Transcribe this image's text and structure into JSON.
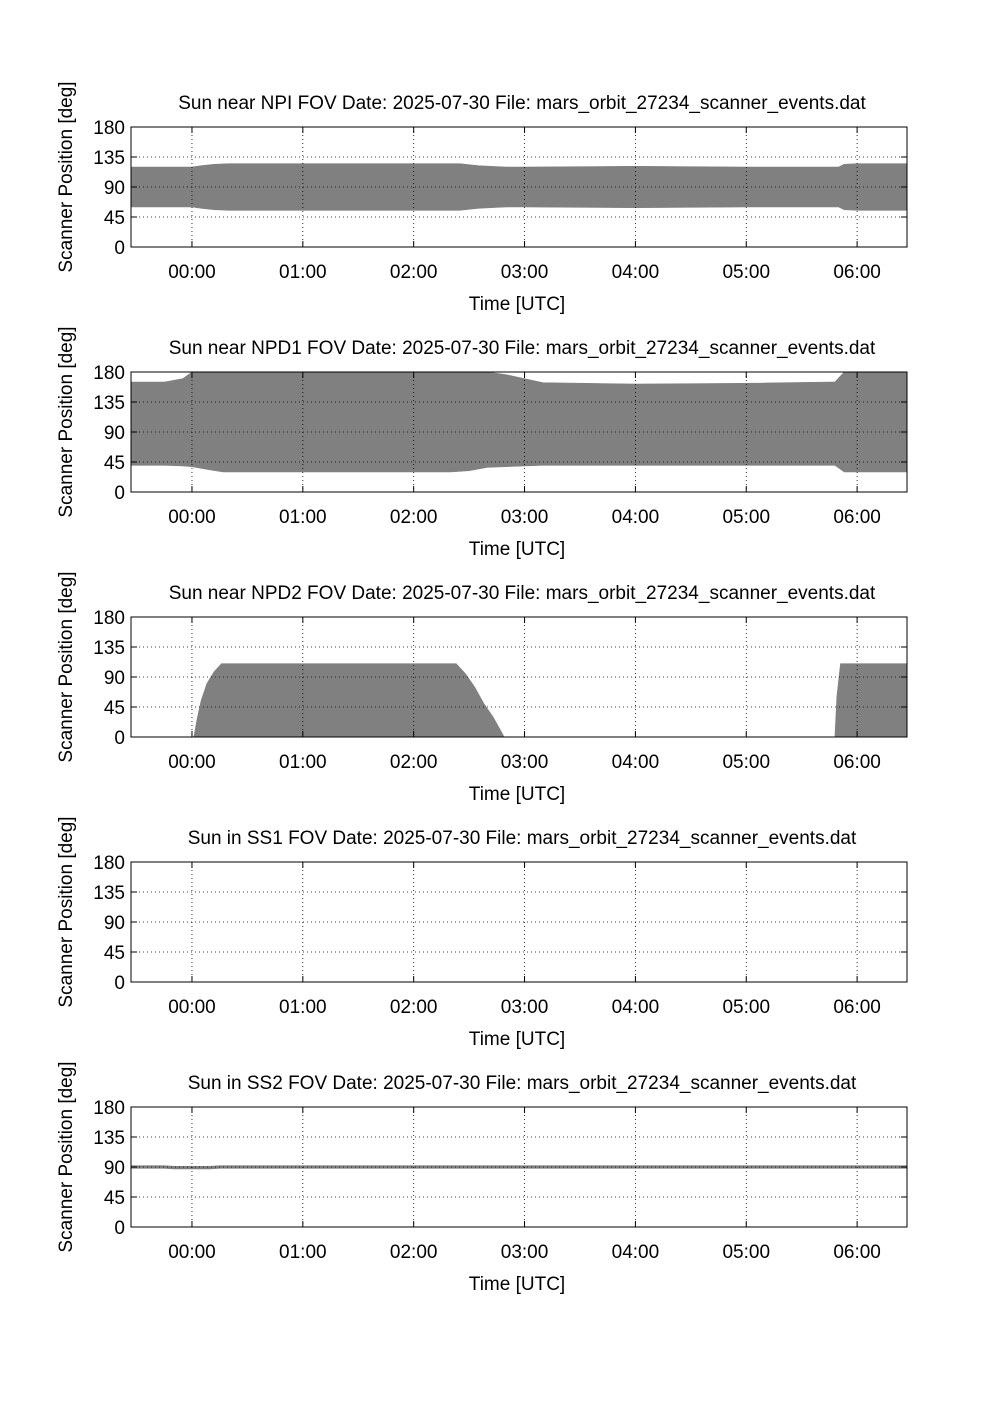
{
  "chart_data": [
    {
      "type": "area",
      "title": "Sun near NPI FOV   Date: 2025-07-30   File: mars_orbit_27234_scanner_events.dat",
      "xlabel": "Time [UTC]",
      "ylabel": "Scanner Position [deg]",
      "xlim": [
        "2025-07-29T23:27",
        "2025-07-30T06:27"
      ],
      "ylim": [
        0,
        180
      ],
      "xticks": [
        "00:00",
        "01:00",
        "02:00",
        "03:00",
        "04:00",
        "05:00",
        "06:00"
      ],
      "yticks": [
        "0",
        "45",
        "90",
        "135",
        "180"
      ],
      "grid": true,
      "fill_color": "#808080",
      "series": [
        {
          "x": [
            "2025-07-29T23:27",
            "2025-07-30T00:00",
            "2025-07-30T00:05",
            "2025-07-30T00:12",
            "2025-07-30T00:20",
            "2025-07-30T01:00",
            "2025-07-30T02:00",
            "2025-07-30T02:25",
            "2025-07-30T02:35",
            "2025-07-30T02:50",
            "2025-07-30T03:00",
            "2025-07-30T04:00",
            "2025-07-30T05:00",
            "2025-07-30T05:50",
            "2025-07-30T05:53",
            "2025-07-30T06:00",
            "2025-07-30T06:27"
          ],
          "lower": [
            60,
            60,
            58,
            56,
            55,
            55,
            55,
            55,
            58,
            60,
            60,
            59,
            60,
            60,
            56,
            55,
            55
          ],
          "upper": [
            120,
            120,
            122,
            124,
            125,
            125,
            125,
            125,
            122,
            120,
            120,
            121,
            120,
            120,
            124,
            125,
            125
          ]
        }
      ]
    },
    {
      "type": "area",
      "title": "Sun near NPD1 FOV   Date: 2025-07-30   File: mars_orbit_27234_scanner_events.dat",
      "xlabel": "Time [UTC]",
      "ylabel": "Scanner Position [deg]",
      "xlim": [
        "2025-07-29T23:27",
        "2025-07-30T06:27"
      ],
      "ylim": [
        0,
        180
      ],
      "xticks": [
        "00:00",
        "01:00",
        "02:00",
        "03:00",
        "04:00",
        "05:00",
        "06:00"
      ],
      "yticks": [
        "0",
        "45",
        "90",
        "135",
        "180"
      ],
      "grid": true,
      "fill_color": "#808080",
      "series": [
        {
          "x": [
            "2025-07-29T23:27",
            "2025-07-29T23:45",
            "2025-07-29T23:55",
            "2025-07-30T00:00",
            "2025-07-30T00:10",
            "2025-07-30T00:17",
            "2025-07-30T01:00",
            "2025-07-30T02:00",
            "2025-07-30T02:20",
            "2025-07-30T02:30",
            "2025-07-30T02:40",
            "2025-07-30T02:50",
            "2025-07-30T03:00",
            "2025-07-30T03:10",
            "2025-07-30T04:00",
            "2025-07-30T05:00",
            "2025-07-30T05:45",
            "2025-07-30T05:48",
            "2025-07-30T05:53",
            "2025-07-30T06:27"
          ],
          "lower": [
            40,
            40,
            39,
            38,
            33,
            30,
            30,
            30,
            30,
            32,
            37,
            38,
            39,
            40,
            40,
            40,
            40,
            40,
            30,
            30
          ],
          "upper": [
            165,
            165,
            170,
            180,
            180,
            180,
            180,
            180,
            180,
            180,
            180,
            176,
            170,
            164,
            162,
            163,
            165,
            165,
            180,
            180
          ]
        }
      ]
    },
    {
      "type": "area",
      "title": "Sun near NPD2 FOV   Date: 2025-07-30   File: mars_orbit_27234_scanner_events.dat",
      "xlabel": "Time [UTC]",
      "ylabel": "Scanner Position [deg]",
      "xlim": [
        "2025-07-29T23:27",
        "2025-07-30T06:27"
      ],
      "ylim": [
        0,
        180
      ],
      "xticks": [
        "00:00",
        "01:00",
        "02:00",
        "03:00",
        "04:00",
        "05:00",
        "06:00"
      ],
      "yticks": [
        "0",
        "45",
        "90",
        "135",
        "180"
      ],
      "grid": true,
      "fill_color": "#808080",
      "series": [
        {
          "x": [
            "2025-07-29T23:27",
            "2025-07-30T00:01",
            "2025-07-30T00:03",
            "2025-07-30T00:05",
            "2025-07-30T00:08",
            "2025-07-30T00:12",
            "2025-07-30T00:16",
            "2025-07-30T01:00",
            "2025-07-30T02:00",
            "2025-07-30T02:23",
            "2025-07-30T02:28",
            "2025-07-30T02:33",
            "2025-07-30T02:38",
            "2025-07-30T02:43",
            "2025-07-30T02:47",
            "2025-07-30T02:49",
            "2025-07-30T05:48",
            "2025-07-30T05:49",
            "2025-07-30T05:51",
            "2025-07-30T06:27"
          ],
          "lower": [
            0,
            0,
            0,
            0,
            0,
            0,
            0,
            0,
            0,
            0,
            0,
            0,
            0,
            0,
            0,
            0,
            0,
            0,
            0,
            0
          ],
          "upper": [
            0,
            0,
            30,
            55,
            80,
            98,
            110,
            110,
            110,
            110,
            95,
            75,
            50,
            30,
            10,
            0,
            0,
            60,
            110,
            110
          ]
        }
      ]
    },
    {
      "type": "area",
      "title": "Sun in SS1 FOV   Date: 2025-07-30   File: mars_orbit_27234_scanner_events.dat",
      "xlabel": "Time [UTC]",
      "ylabel": "Scanner Position [deg]",
      "xlim": [
        "2025-07-29T23:27",
        "2025-07-30T06:27"
      ],
      "ylim": [
        0,
        180
      ],
      "xticks": [
        "00:00",
        "01:00",
        "02:00",
        "03:00",
        "04:00",
        "05:00",
        "06:00"
      ],
      "yticks": [
        "0",
        "45",
        "90",
        "135",
        "180"
      ],
      "grid": true,
      "fill_color": "#808080",
      "series": []
    },
    {
      "type": "area",
      "title": "Sun in SS2 FOV   Date: 2025-07-30   File: mars_orbit_27234_scanner_events.dat",
      "xlabel": "Time [UTC]",
      "ylabel": "Scanner Position [deg]",
      "xlim": [
        "2025-07-29T23:27",
        "2025-07-30T06:27"
      ],
      "ylim": [
        0,
        180
      ],
      "xticks": [
        "00:00",
        "01:00",
        "02:00",
        "03:00",
        "04:00",
        "05:00",
        "06:00"
      ],
      "yticks": [
        "0",
        "45",
        "90",
        "135",
        "180"
      ],
      "grid": true,
      "fill_color": "#808080",
      "series": [
        {
          "x": [
            "2025-07-29T23:27",
            "2025-07-29T23:45",
            "2025-07-29T23:50",
            "2025-07-30T00:10",
            "2025-07-30T00:15",
            "2025-07-30T05:45",
            "2025-07-30T05:50",
            "2025-07-30T06:27"
          ],
          "lower": [
            88,
            88,
            87,
            87,
            88,
            88,
            88,
            88
          ],
          "upper": [
            92,
            92,
            91,
            91,
            92,
            92,
            92,
            92
          ]
        }
      ]
    }
  ]
}
